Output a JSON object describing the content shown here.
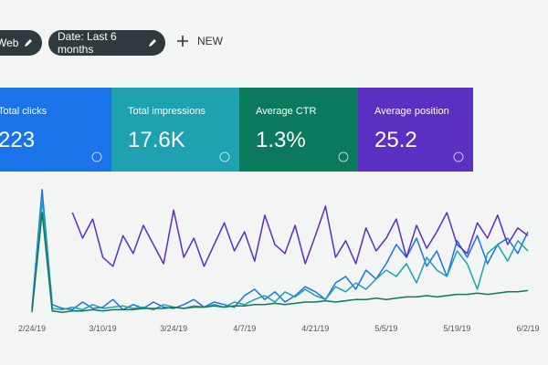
{
  "toolbar": {
    "filters": [
      "Web",
      "Date: Last 6 months"
    ],
    "new": "NEW"
  },
  "metrics": [
    {
      "label": "Total clicks",
      "value": "223",
      "color": "#1a73e8"
    },
    {
      "label": "Total impressions",
      "value": "17.6K",
      "color": "#1ea1b0"
    },
    {
      "label": "Average CTR",
      "value": "1.3%",
      "color": "#0b7a5c"
    },
    {
      "label": "Average position",
      "value": "25.2",
      "color": "#5a2fc2"
    }
  ],
  "chart_data": {
    "type": "line",
    "categories": [
      "2/24/19",
      null,
      null,
      null,
      null,
      null,
      null,
      "3/10/19",
      null,
      null,
      null,
      null,
      null,
      null,
      "3/24/19",
      null,
      null,
      null,
      null,
      null,
      null,
      "4/7/19",
      null,
      null,
      null,
      null,
      null,
      null,
      "4/21/19",
      null,
      null,
      null,
      null,
      null,
      null,
      "5/5/19",
      null,
      null,
      null,
      null,
      null,
      null,
      "5/19/19",
      null,
      null,
      null,
      null,
      null,
      null,
      "6/2/19"
    ],
    "ylim": [
      0,
      100
    ],
    "series": [
      {
        "name": "Total clicks",
        "color": "#1a73e8",
        "values": [
          5,
          98,
          8,
          5,
          4,
          10,
          5,
          6,
          12,
          4,
          8,
          5,
          10,
          6,
          5,
          8,
          12,
          6,
          10,
          8,
          6,
          15,
          20,
          12,
          18,
          10,
          15,
          22,
          18,
          12,
          25,
          30,
          20,
          35,
          28,
          40,
          55,
          45,
          60,
          38,
          50,
          30,
          58,
          45,
          62,
          40,
          55,
          60,
          48,
          65
        ]
      },
      {
        "name": "Total impressions",
        "color": "#1ea1b0",
        "values": [
          3,
          90,
          5,
          4,
          6,
          4,
          8,
          5,
          6,
          7,
          5,
          6,
          4,
          8,
          6,
          5,
          7,
          6,
          8,
          6,
          10,
          8,
          12,
          15,
          10,
          18,
          14,
          20,
          15,
          12,
          22,
          18,
          25,
          20,
          28,
          35,
          30,
          40,
          25,
          45,
          35,
          30,
          50,
          40,
          20,
          48,
          55,
          42,
          58,
          50
        ]
      },
      {
        "name": "Average CTR",
        "color": "#0b7a5c",
        "values": [
          2,
          80,
          3,
          2,
          3,
          3,
          4,
          3,
          4,
          4,
          4,
          5,
          5,
          5,
          6,
          5,
          6,
          6,
          7,
          6,
          7,
          7,
          8,
          8,
          9,
          8,
          9,
          10,
          10,
          11,
          10,
          11,
          12,
          12,
          13,
          12,
          13,
          14,
          14,
          15,
          14,
          15,
          16,
          16,
          17,
          16,
          17,
          18,
          18,
          19
        ]
      },
      {
        "name": "Average position",
        "color": "#5a2fc2",
        "values": [
          null,
          null,
          null,
          null,
          80,
          60,
          75,
          45,
          38,
          62,
          48,
          70,
          55,
          40,
          82,
          45,
          60,
          38,
          55,
          72,
          50,
          65,
          42,
          78,
          55,
          48,
          70,
          40,
          62,
          85,
          45,
          58,
          40,
          68,
          50,
          60,
          75,
          45,
          70,
          52,
          65,
          80,
          55,
          48,
          72,
          60,
          78,
          55,
          68,
          62
        ]
      }
    ]
  }
}
